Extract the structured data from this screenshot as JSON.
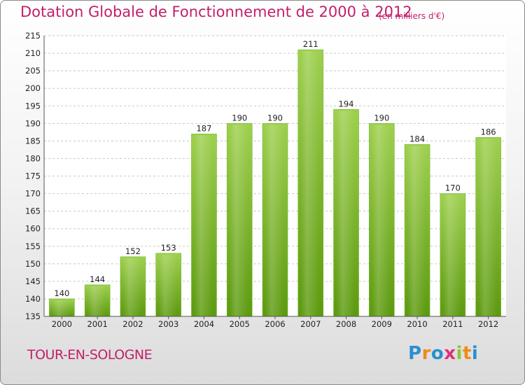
{
  "title": "Dotation Globale de Fonctionnement de 2000 à 2012",
  "subtitle": "(en milliers d'€)",
  "commune": "TOUR-EN-SOLOGNE",
  "logo": {
    "letters": [
      "P",
      "r",
      "o",
      "x",
      "i",
      "t",
      "i"
    ]
  },
  "colors": {
    "bar_top": "#9fd050",
    "bar_bottom": "#5d9a10",
    "title": "#c21f6b"
  },
  "chart_data": {
    "type": "bar",
    "title": "Dotation Globale de Fonctionnement de 2000 à 2012",
    "subtitle": "(en milliers d'€)",
    "categories": [
      "2000",
      "2001",
      "2002",
      "2003",
      "2004",
      "2005",
      "2006",
      "2007",
      "2008",
      "2009",
      "2010",
      "2011",
      "2012"
    ],
    "values": [
      140,
      144,
      152,
      153,
      187,
      190,
      190,
      211,
      194,
      190,
      184,
      170,
      186
    ],
    "ylim": [
      135,
      215
    ],
    "yticks": [
      135,
      140,
      145,
      150,
      155,
      160,
      165,
      170,
      175,
      180,
      185,
      190,
      195,
      200,
      205,
      210,
      215
    ],
    "grid": true,
    "xlabel": "",
    "ylabel": ""
  }
}
